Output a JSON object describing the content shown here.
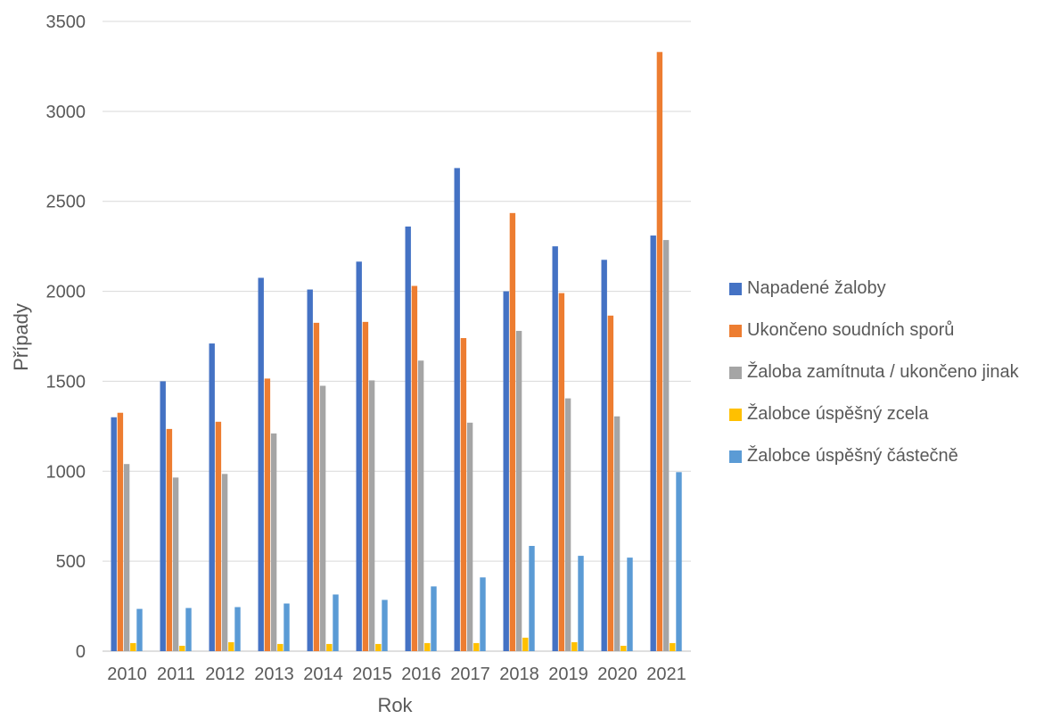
{
  "chart_data": {
    "type": "bar",
    "title": "",
    "xlabel": "Rok",
    "ylabel": "Případy",
    "ylim": [
      0,
      3500
    ],
    "yticks": [
      0,
      500,
      1000,
      1500,
      2000,
      2500,
      3000,
      3500
    ],
    "grid": true,
    "legend_position": "right",
    "categories": [
      "2010",
      "2011",
      "2012",
      "2013",
      "2014",
      "2015",
      "2016",
      "2017",
      "2018",
      "2019",
      "2020",
      "2021"
    ],
    "series": [
      {
        "name": "Napadené žaloby",
        "color": "#4472C4",
        "values": [
          1300,
          1500,
          1710,
          2075,
          2010,
          2165,
          2360,
          2685,
          2000,
          2250,
          2175,
          2310
        ]
      },
      {
        "name": "Ukončeno soudních sporů",
        "color": "#ED7D31",
        "values": [
          1325,
          1235,
          1275,
          1515,
          1825,
          1830,
          2030,
          1740,
          2435,
          1990,
          1865,
          3330
        ]
      },
      {
        "name": "Žaloba zamítnuta / ukončeno jinak",
        "color": "#A5A5A5",
        "values": [
          1040,
          965,
          985,
          1210,
          1475,
          1505,
          1615,
          1270,
          1780,
          1405,
          1305,
          2285
        ]
      },
      {
        "name": "Žalobce úspěšný zcela",
        "color": "#FFC000",
        "values": [
          45,
          30,
          50,
          40,
          40,
          40,
          45,
          45,
          75,
          50,
          30,
          45
        ]
      },
      {
        "name": "Žalobce úspěšný částečně",
        "color": "#5B9BD5",
        "values": [
          235,
          240,
          245,
          265,
          315,
          285,
          360,
          410,
          585,
          530,
          520,
          995
        ]
      }
    ]
  }
}
